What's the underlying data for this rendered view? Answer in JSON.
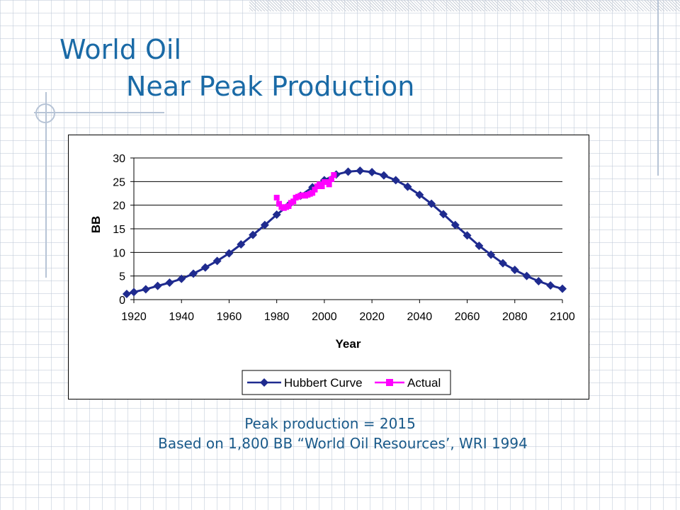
{
  "slide": {
    "title_line1": "World Oil",
    "title_line2": "Near Peak Production",
    "caption_line1": "Peak production = 2015",
    "caption_line2": "Based on 1,800 BB “World Oil Resources’, WRI 1994"
  },
  "colors": {
    "title": "#1a6aa6",
    "hubbert": "#1f2b8f",
    "actual": "#ff00ff"
  },
  "chart_data": {
    "type": "line",
    "title": "",
    "xlabel": "Year",
    "ylabel": "BB",
    "xlim": [
      1920,
      2100
    ],
    "ylim": [
      0,
      30
    ],
    "x_ticks": [
      "1920",
      "1940",
      "1960",
      "1980",
      "2000",
      "2020",
      "2040",
      "2060",
      "2080",
      "2100"
    ],
    "y_ticks": [
      "0",
      "5",
      "10",
      "15",
      "20",
      "25",
      "30"
    ],
    "grid": "horizontal",
    "legend_position": "bottom",
    "series": [
      {
        "name": "Hubbert Curve",
        "marker": "diamond",
        "points": [
          [
            1917,
            1.2
          ],
          [
            1920,
            1.6
          ],
          [
            1925,
            2.2
          ],
          [
            1930,
            2.9
          ],
          [
            1935,
            3.6
          ],
          [
            1940,
            4.4
          ],
          [
            1945,
            5.5
          ],
          [
            1950,
            6.8
          ],
          [
            1955,
            8.2
          ],
          [
            1960,
            9.8
          ],
          [
            1965,
            11.7
          ],
          [
            1970,
            13.7
          ],
          [
            1975,
            15.8
          ],
          [
            1980,
            18.0
          ],
          [
            1985,
            20.0
          ],
          [
            1990,
            22.0
          ],
          [
            1995,
            23.8
          ],
          [
            2000,
            25.3
          ],
          [
            2005,
            26.5
          ],
          [
            2010,
            27.1
          ],
          [
            2015,
            27.3
          ],
          [
            2020,
            27.0
          ],
          [
            2025,
            26.3
          ],
          [
            2030,
            25.3
          ],
          [
            2035,
            23.9
          ],
          [
            2040,
            22.2
          ],
          [
            2045,
            20.3
          ],
          [
            2050,
            18.1
          ],
          [
            2055,
            15.8
          ],
          [
            2060,
            13.6
          ],
          [
            2065,
            11.4
          ],
          [
            2070,
            9.5
          ],
          [
            2075,
            7.7
          ],
          [
            2080,
            6.3
          ],
          [
            2085,
            5.0
          ],
          [
            2090,
            3.9
          ],
          [
            2095,
            3.0
          ],
          [
            2100,
            2.3
          ]
        ]
      },
      {
        "name": "Actual",
        "marker": "square",
        "points": [
          [
            1980,
            21.6
          ],
          [
            1981,
            20.3
          ],
          [
            1982,
            19.6
          ],
          [
            1983,
            19.4
          ],
          [
            1984,
            19.6
          ],
          [
            1985,
            19.8
          ],
          [
            1986,
            20.5
          ],
          [
            1987,
            20.8
          ],
          [
            1988,
            21.6
          ],
          [
            1989,
            21.8
          ],
          [
            1990,
            22.0
          ],
          [
            1991,
            22.1
          ],
          [
            1992,
            22.0
          ],
          [
            1993,
            22.2
          ],
          [
            1994,
            22.4
          ],
          [
            1995,
            22.6
          ],
          [
            1996,
            23.3
          ],
          [
            1997,
            24.0
          ],
          [
            1998,
            24.4
          ],
          [
            1999,
            24.0
          ],
          [
            2000,
            24.9
          ],
          [
            2001,
            24.9
          ],
          [
            2002,
            24.4
          ],
          [
            2003,
            25.5
          ],
          [
            2004,
            26.4
          ]
        ]
      }
    ]
  }
}
